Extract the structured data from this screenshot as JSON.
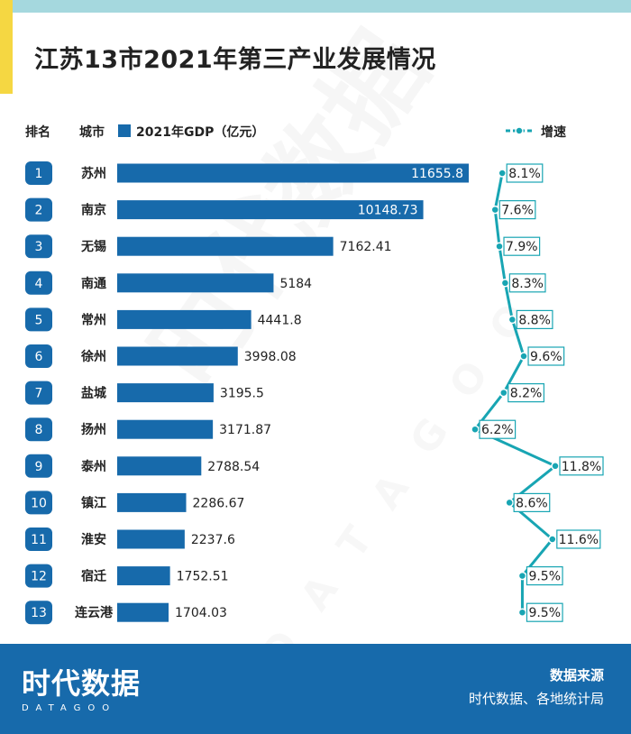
{
  "title": "江苏13市2021年第三产业发展情况",
  "chart_data": {
    "type": "bar",
    "title": "江苏13市2021年第三产业发展情况",
    "rank_header": "排名",
    "city_header": "城市",
    "bar_series_name": "2021年GDP（亿元）",
    "line_series_name": "增速",
    "ranks": [
      "1",
      "2",
      "3",
      "4",
      "5",
      "6",
      "7",
      "8",
      "9",
      "10",
      "11",
      "12",
      "13"
    ],
    "categories": [
      "苏州",
      "南京",
      "无锡",
      "南通",
      "常州",
      "徐州",
      "盐城",
      "扬州",
      "泰州",
      "镇江",
      "淮安",
      "宿迁",
      "连云港"
    ],
    "values": [
      11655.8,
      10148.73,
      7162.41,
      5184,
      4441.8,
      3998.08,
      3195.5,
      3171.87,
      2788.54,
      2286.67,
      2237.6,
      1752.51,
      1704.03
    ],
    "value_labels": [
      "11655.8",
      "10148.73",
      "7162.41",
      "5184",
      "4441.8",
      "3998.08",
      "3195.5",
      "3171.87",
      "2788.54",
      "2286.67",
      "2237.6",
      "1752.51",
      "1704.03"
    ],
    "growth": [
      8.1,
      7.6,
      7.9,
      8.3,
      8.8,
      9.6,
      8.2,
      6.2,
      11.8,
      8.6,
      11.6,
      9.5,
      9.5
    ],
    "growth_labels": [
      "8.1%",
      "7.6%",
      "7.9%",
      "8.3%",
      "8.8%",
      "9.6%",
      "8.2%",
      "6.2%",
      "11.8%",
      "8.6%",
      "11.6%",
      "9.5%",
      "9.5%"
    ]
  },
  "footer": {
    "logo_cn": "时代数据",
    "logo_en": "DATAGOO",
    "source_label": "数据来源",
    "source_text": "时代数据、各地统计局"
  },
  "colors": {
    "bar": "#176aab",
    "line": "#18a5b3",
    "rank_badge": "#176aab",
    "footer": "#176aab",
    "accent_yellow": "#f5d742",
    "accent_cyan": "#a5d8de"
  }
}
